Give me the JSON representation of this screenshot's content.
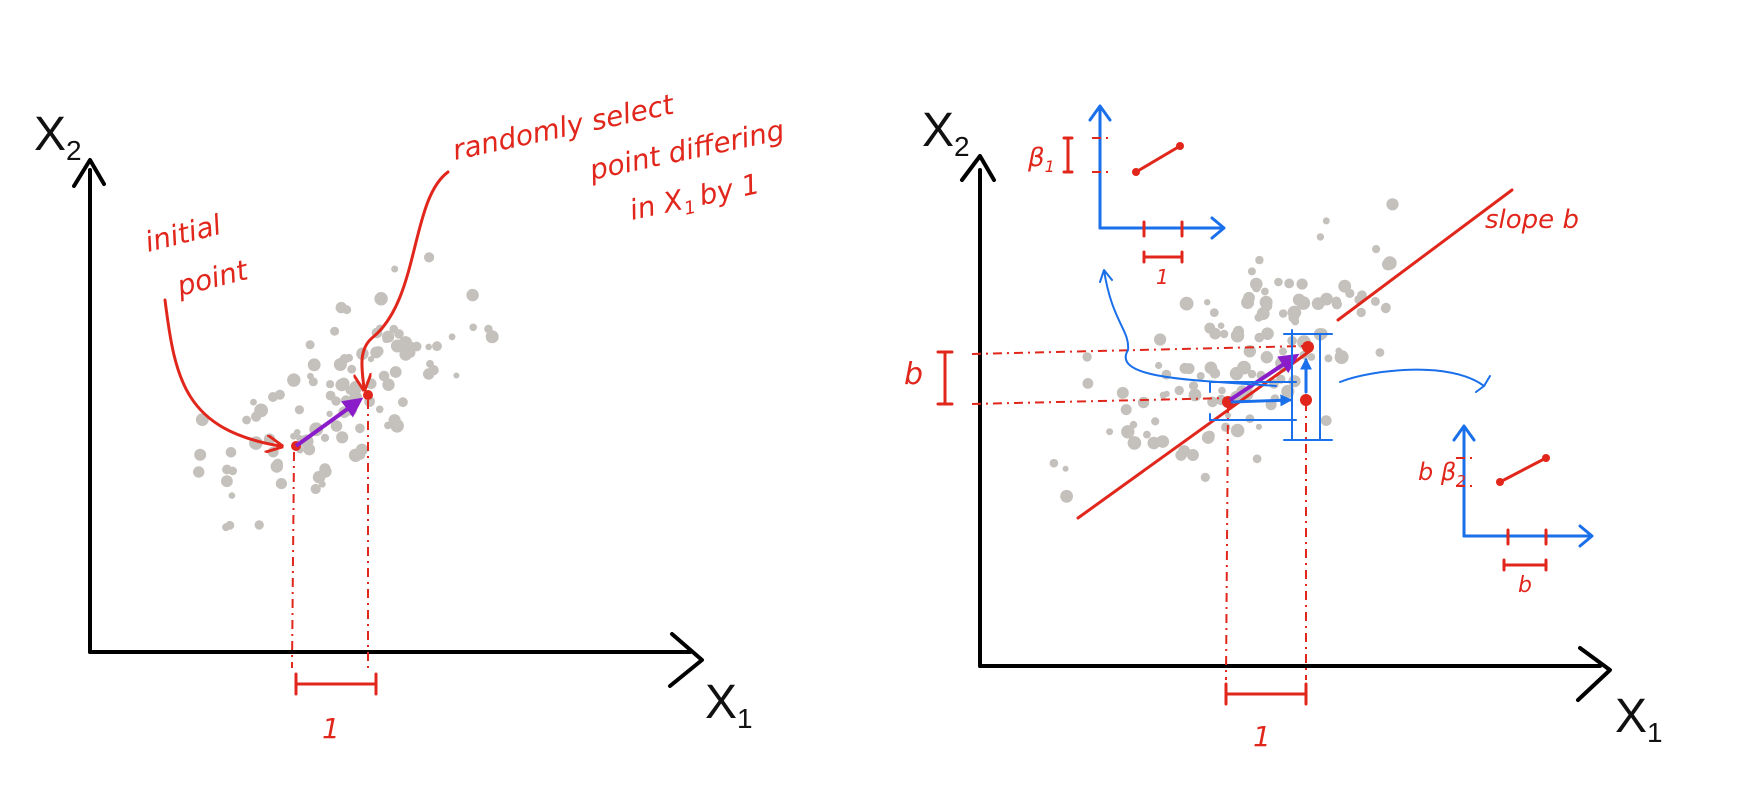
{
  "left_panel": {
    "axis_x_label": "X",
    "axis_x_sub": "1",
    "axis_y_label": "X",
    "axis_y_sub": "2",
    "annotation_initial_line1": "initial",
    "annotation_initial_line2": "point",
    "annotation_random_line1": "randomly select",
    "annotation_random_line2": "point differing",
    "annotation_random_line3": "in X",
    "annotation_random_sub": "1",
    "annotation_random_line3b": "by 1",
    "step_label": "1"
  },
  "right_panel": {
    "axis_x_label": "X",
    "axis_x_sub": "1",
    "axis_y_label": "X",
    "axis_y_sub": "2",
    "slope_label": "slope b",
    "b_label": "b",
    "step_label": "1",
    "inset_top_beta": "β",
    "inset_top_beta_sub": "1",
    "inset_top_step": "1",
    "inset_bottom_beta": "b β",
    "inset_bottom_beta_sub": "2",
    "inset_bottom_step": "b"
  },
  "colors": {
    "ink": "#000000",
    "annotation_red": "#e1261c",
    "arrow_purple": "#8a1cc9",
    "axis_blue": "#1a6fea",
    "point_gray": "#c4c0bc"
  }
}
